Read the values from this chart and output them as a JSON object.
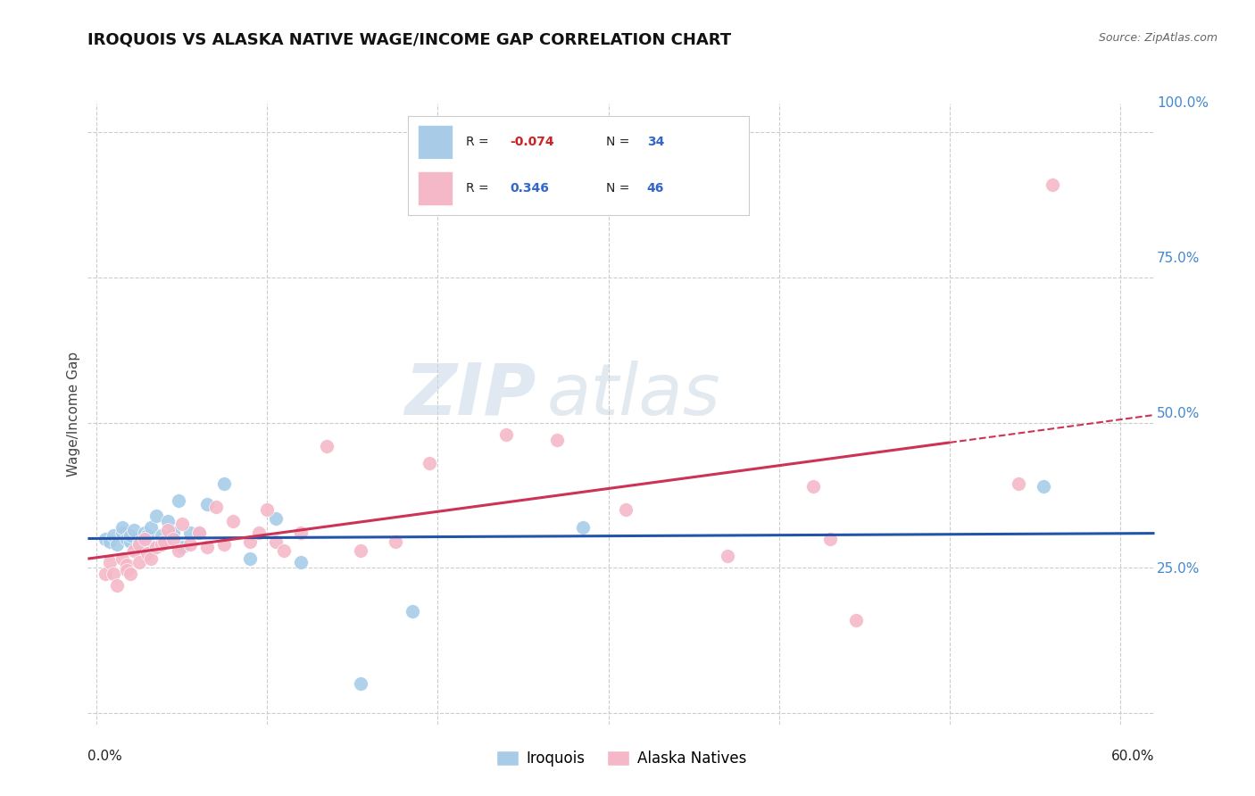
{
  "title": "IROQUOIS VS ALASKA NATIVE WAGE/INCOME GAP CORRELATION CHART",
  "source": "Source: ZipAtlas.com",
  "ylabel": "Wage/Income Gap",
  "y_ticks_right": [
    0.25,
    0.5,
    0.75,
    1.0
  ],
  "y_tick_labels_right": [
    "25.0%",
    "50.0%",
    "75.0%",
    "100.0%"
  ],
  "xlim": [
    -0.005,
    0.62
  ],
  "ylim": [
    -0.02,
    1.05
  ],
  "legend_label_iroquois": "Iroquois",
  "legend_label_alaska": "Alaska Natives",
  "background_color": "#ffffff",
  "grid_color": "#cccccc",
  "iroquois_color": "#a8cce8",
  "alaska_color": "#f5b8c8",
  "iroquois_line_color": "#2255aa",
  "alaska_line_color": "#cc3355",
  "watermark_zip": "ZIP",
  "watermark_atlas": "atlas",
  "iroquois_x": [
    0.005,
    0.008,
    0.01,
    0.012,
    0.015,
    0.015,
    0.018,
    0.02,
    0.02,
    0.022,
    0.025,
    0.025,
    0.028,
    0.03,
    0.03,
    0.032,
    0.035,
    0.038,
    0.04,
    0.042,
    0.045,
    0.048,
    0.05,
    0.055,
    0.06,
    0.065,
    0.075,
    0.09,
    0.105,
    0.12,
    0.155,
    0.185,
    0.285,
    0.555
  ],
  "iroquois_y": [
    0.3,
    0.295,
    0.305,
    0.29,
    0.31,
    0.32,
    0.3,
    0.295,
    0.305,
    0.315,
    0.285,
    0.295,
    0.31,
    0.295,
    0.305,
    0.32,
    0.34,
    0.305,
    0.295,
    0.33,
    0.31,
    0.365,
    0.285,
    0.31,
    0.31,
    0.36,
    0.395,
    0.265,
    0.335,
    0.26,
    0.05,
    0.175,
    0.32,
    0.39
  ],
  "alaska_x": [
    0.005,
    0.008,
    0.01,
    0.012,
    0.015,
    0.018,
    0.018,
    0.02,
    0.022,
    0.025,
    0.025,
    0.028,
    0.03,
    0.032,
    0.035,
    0.038,
    0.04,
    0.042,
    0.045,
    0.048,
    0.05,
    0.055,
    0.06,
    0.065,
    0.07,
    0.075,
    0.08,
    0.09,
    0.095,
    0.1,
    0.105,
    0.11,
    0.12,
    0.135,
    0.155,
    0.175,
    0.195,
    0.24,
    0.27,
    0.31,
    0.37,
    0.42,
    0.43,
    0.445,
    0.54,
    0.56
  ],
  "alaska_y": [
    0.24,
    0.26,
    0.24,
    0.22,
    0.265,
    0.255,
    0.245,
    0.24,
    0.28,
    0.26,
    0.29,
    0.3,
    0.275,
    0.265,
    0.285,
    0.29,
    0.295,
    0.315,
    0.3,
    0.28,
    0.325,
    0.29,
    0.31,
    0.285,
    0.355,
    0.29,
    0.33,
    0.295,
    0.31,
    0.35,
    0.295,
    0.28,
    0.31,
    0.46,
    0.28,
    0.295,
    0.43,
    0.48,
    0.47,
    0.35,
    0.27,
    0.39,
    0.3,
    0.16,
    0.395,
    0.91
  ],
  "R_iroquois": -0.074,
  "N_iroquois": 34,
  "R_alaska": 0.346,
  "N_alaska": 46
}
